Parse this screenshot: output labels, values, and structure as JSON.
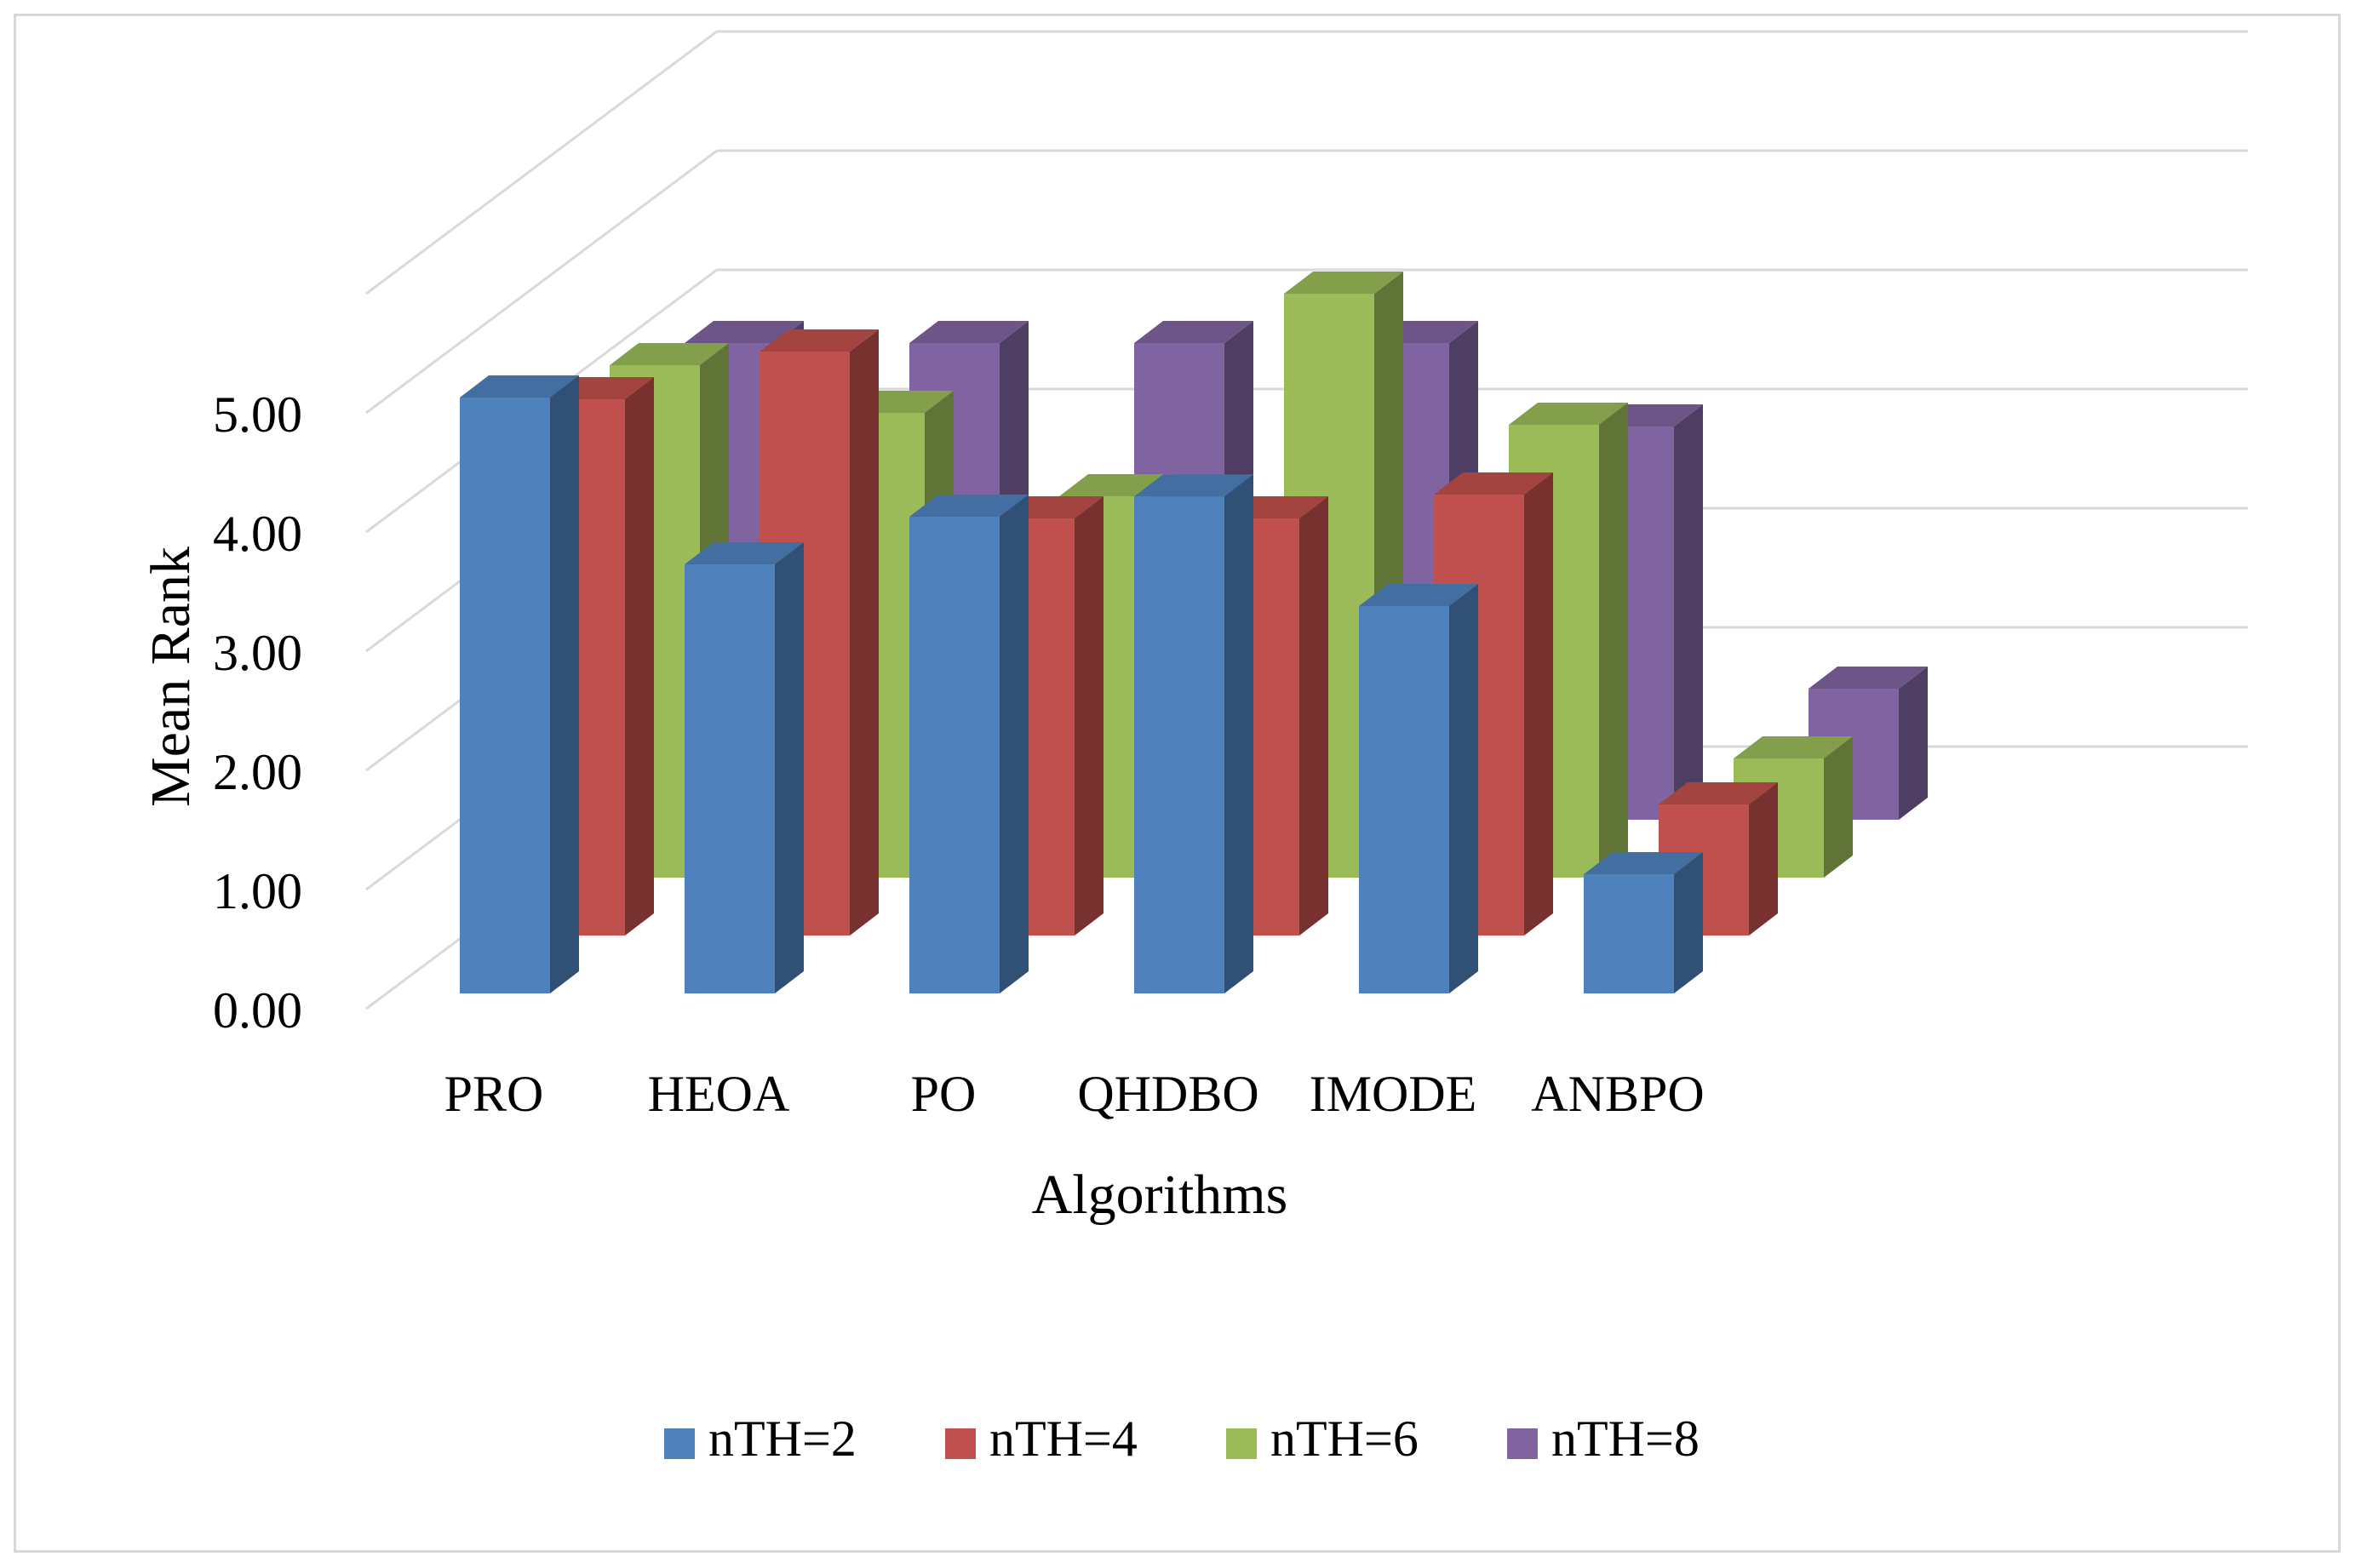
{
  "chart_data": {
    "type": "bar",
    "subtype": "3d-column",
    "title": "",
    "xlabel": "Algorithms",
    "ylabel": "Mean Rank",
    "categories": [
      "PRO",
      "HEOA",
      "PO",
      "QHDBO",
      "IMODE",
      "ANBPO"
    ],
    "yticks": [
      "0.00",
      "1.00",
      "2.00",
      "3.00",
      "4.00",
      "5.00"
    ],
    "ylim": [
      0,
      6
    ],
    "grid": true,
    "legend_position": "bottom",
    "series": [
      {
        "name": "nTH=2",
        "color": "#4f81bd",
        "values": [
          5.0,
          3.6,
          4.0,
          4.17,
          3.25,
          1.0
        ]
      },
      {
        "name": "nTH=4",
        "color": "#c0504d",
        "values": [
          4.5,
          4.9,
          3.5,
          3.5,
          3.7,
          1.1
        ]
      },
      {
        "name": "nTH=6",
        "color": "#9bbb59",
        "values": [
          4.3,
          3.9,
          3.2,
          4.9,
          3.8,
          1.0
        ]
      },
      {
        "name": "nTH=8",
        "color": "#8064a2",
        "values": [
          4.0,
          4.0,
          4.0,
          4.0,
          3.3,
          1.1
        ]
      }
    ]
  }
}
